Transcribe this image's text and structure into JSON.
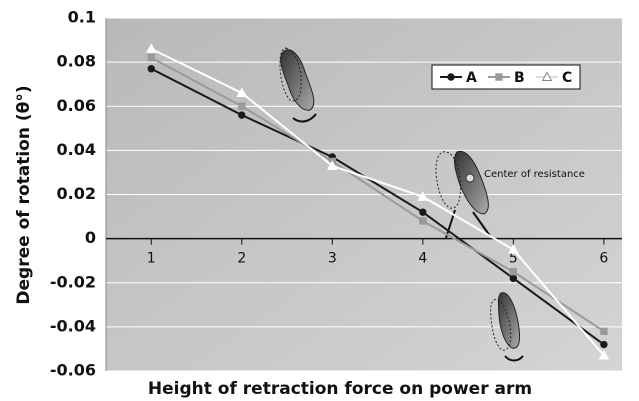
{
  "chart_data": {
    "type": "line",
    "x_label": "Height of retraction force on power arm",
    "y_label": "Degree of rotation (θ°)",
    "annotation": "Center of resistance",
    "x": [
      1,
      2,
      3,
      4,
      5,
      6
    ],
    "series": [
      {
        "name": "A",
        "color": "#1a1a1a",
        "marker": "circle",
        "values": [
          0.077,
          0.056,
          0.037,
          0.012,
          -0.018,
          -0.048
        ]
      },
      {
        "name": "B",
        "color": "#9a9a9a",
        "marker": "square",
        "values": [
          0.082,
          0.06,
          0.035,
          0.008,
          -0.015,
          -0.042
        ]
      },
      {
        "name": "C",
        "color": "#ffffff",
        "marker": "triangle",
        "values": [
          0.086,
          0.066,
          0.033,
          0.019,
          -0.005,
          -0.053
        ]
      }
    ],
    "xlim": [
      0.5,
      6.2
    ],
    "xticks": [
      1,
      2,
      3,
      4,
      5,
      6
    ],
    "ylim": [
      -0.06,
      0.1
    ],
    "yticks": [
      0.1,
      0.08,
      0.06,
      0.04,
      0.02,
      0,
      -0.02,
      -0.04,
      -0.06
    ],
    "grid": true
  }
}
